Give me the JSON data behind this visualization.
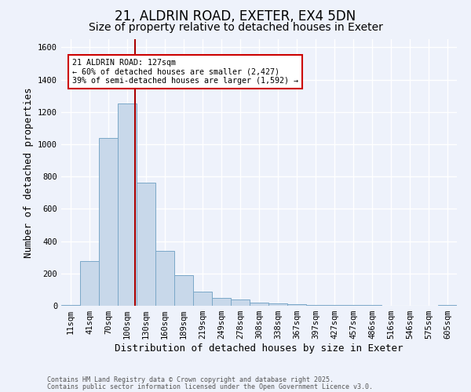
{
  "title1": "21, ALDRIN ROAD, EXETER, EX4 5DN",
  "title2": "Size of property relative to detached houses in Exeter",
  "xlabel": "Distribution of detached houses by size in Exeter",
  "ylabel": "Number of detached properties",
  "categories": [
    "11sqm",
    "41sqm",
    "70sqm",
    "100sqm",
    "130sqm",
    "160sqm",
    "189sqm",
    "219sqm",
    "249sqm",
    "278sqm",
    "308sqm",
    "338sqm",
    "367sqm",
    "397sqm",
    "427sqm",
    "457sqm",
    "486sqm",
    "516sqm",
    "546sqm",
    "575sqm",
    "605sqm"
  ],
  "values": [
    5,
    275,
    1040,
    1250,
    760,
    340,
    190,
    85,
    50,
    40,
    20,
    15,
    10,
    5,
    3,
    3,
    3,
    2,
    2,
    2,
    3
  ],
  "bar_color": "#c8d8ea",
  "bar_edge_color": "#7ba8c8",
  "vline_color": "#aa0000",
  "annotation_text": "21 ALDRIN ROAD: 127sqm\n← 60% of detached houses are smaller (2,427)\n39% of semi-detached houses are larger (1,592) →",
  "annotation_box_color": "white",
  "annotation_box_edge": "#cc0000",
  "ylim": [
    0,
    1650
  ],
  "yticks": [
    0,
    200,
    400,
    600,
    800,
    1000,
    1200,
    1400,
    1600
  ],
  "footer1": "Contains HM Land Registry data © Crown copyright and database right 2025.",
  "footer2": "Contains public sector information licensed under the Open Government Licence v3.0.",
  "bg_color": "#eef2fb",
  "plot_bg_color": "#eef2fb",
  "grid_color": "#ffffff",
  "title_fontsize": 12,
  "subtitle_fontsize": 10,
  "axis_label_fontsize": 9,
  "tick_fontsize": 7.5,
  "footer_fontsize": 6.0
}
